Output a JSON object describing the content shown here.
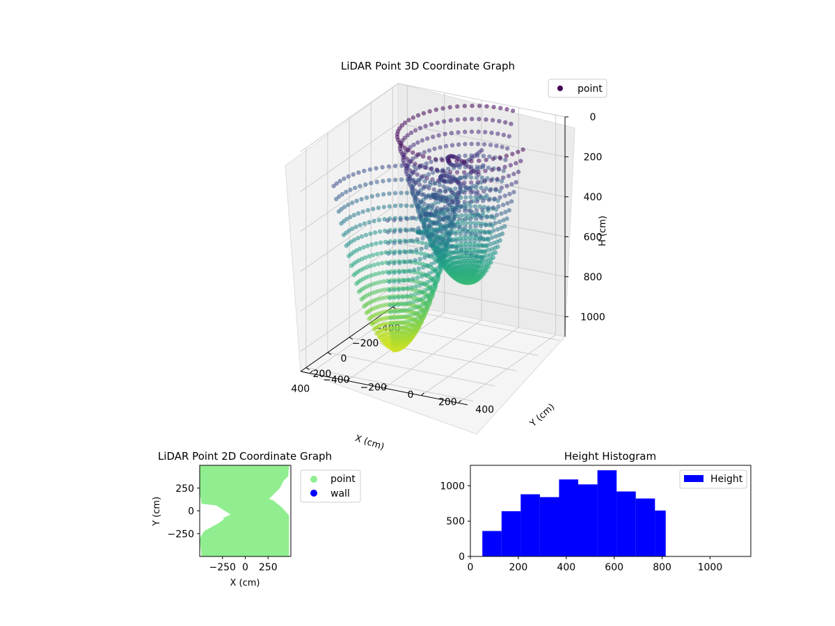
{
  "chart_data": [
    {
      "type": "scatter3d",
      "title": "LiDAR Point 3D Coordinate Graph",
      "xlabel": "X (cm)",
      "ylabel": "Y (cm)",
      "zlabel": "H (cm)",
      "xticks": [
        "−400",
        "−200",
        "0",
        "200",
        "400"
      ],
      "yticks": [
        "−400",
        "−200",
        "0",
        "200",
        "400"
      ],
      "zticks": [
        "0",
        "200",
        "400",
        "600",
        "800",
        "1000"
      ],
      "xlim": [
        -450,
        450
      ],
      "ylim": [
        -450,
        450
      ],
      "zlim": [
        0,
        1100
      ],
      "z_inverted": true,
      "legend": {
        "entries": [
          "point"
        ],
        "position": "top-right"
      },
      "colormap": "viridis",
      "grid": true
    },
    {
      "type": "scatter",
      "title": "LiDAR Point 2D Coordinate Graph",
      "xlabel": "X (cm)",
      "ylabel": "Y (cm)",
      "xticks": [
        "−250",
        "0",
        "250"
      ],
      "yticks": [
        "−250",
        "0",
        "250"
      ],
      "xlim": [
        -500,
        500
      ],
      "ylim": [
        -500,
        500
      ],
      "legend": {
        "entries": [
          "point",
          "wall"
        ],
        "position": "outside-right"
      },
      "series": [
        {
          "name": "point",
          "color": "#90ee90"
        },
        {
          "name": "wall",
          "color": "#0000ff"
        }
      ]
    },
    {
      "type": "bar",
      "title": "Height Histogram",
      "xlabel": "",
      "ylabel": "",
      "xticks": [
        "0",
        "200",
        "400",
        "600",
        "800",
        "1000"
      ],
      "yticks": [
        "0",
        "500",
        "1000"
      ],
      "xlim": [
        0,
        1170
      ],
      "ylim": [
        0,
        1290
      ],
      "bin_edges": [
        50,
        130,
        210,
        290,
        370,
        450,
        530,
        610,
        690,
        770,
        815
      ],
      "counts": [
        360,
        640,
        880,
        840,
        1090,
        1020,
        1220,
        920,
        820,
        650
      ],
      "series_name": "Height",
      "color": "#0000ff",
      "legend": {
        "entries": [
          "Height"
        ],
        "position": "top-right"
      }
    }
  ]
}
